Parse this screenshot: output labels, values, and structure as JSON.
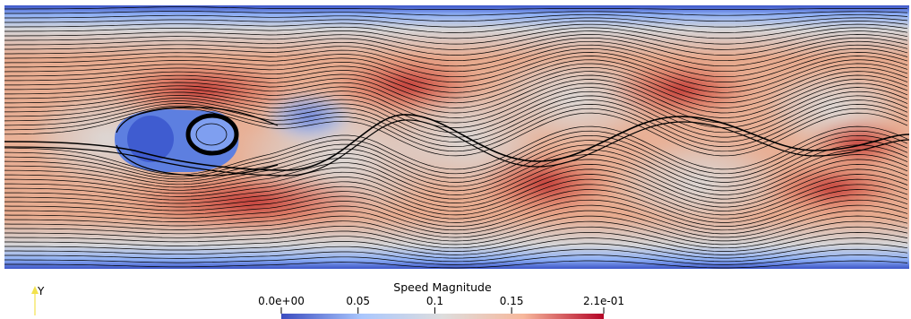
{
  "colorbar": {
    "title": "Speed Magnitude",
    "range": [
      0.0,
      0.21
    ],
    "ticks": [
      {
        "value": 0.0,
        "label": "0.0e+00"
      },
      {
        "value": 0.05,
        "label": "0.05"
      },
      {
        "value": 0.1,
        "label": "0.1"
      },
      {
        "value": 0.15,
        "label": "0.15"
      },
      {
        "value": 0.21,
        "label": "2.1e-01"
      }
    ],
    "colormap": [
      "#3b4cc0",
      "#aac7fd",
      "#dddddd",
      "#f7b89c",
      "#b40426"
    ]
  },
  "orientation_axis": {
    "label": "Y",
    "color": "#f2e24c"
  }
}
